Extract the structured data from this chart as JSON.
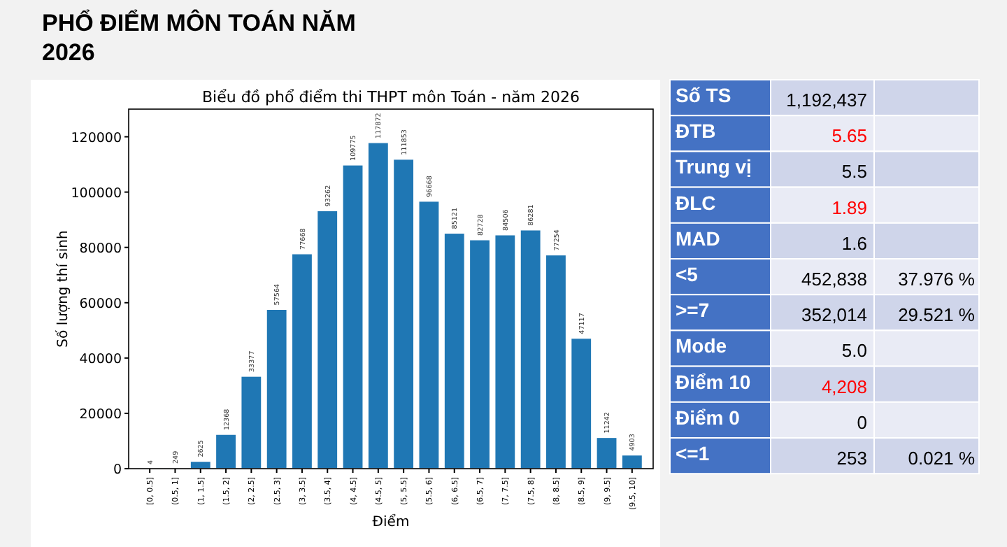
{
  "chart_data": [
    {
      "type": "bar",
      "title": "PHỔ ĐIỂM MÔN TOÁN NĂM 2026",
      "subtitle": "Biểu đồ phổ điểm thi THPT môn Toán - năm 2026",
      "xlabel": "Điểm",
      "ylabel": "Số lượng thí sinh",
      "categories": [
        "[0, 0.5]",
        "(0.5, 1]",
        "(1, 1.5]",
        "(1.5, 2]",
        "(2, 2.5]",
        "(2.5, 3]",
        "(3, 3.5]",
        "(3.5, 4]",
        "(4, 4.5]",
        "(4.5, 5]",
        "(5, 5.5]",
        "(5.5, 6]",
        "(6, 6.5]",
        "(6.5, 7]",
        "(7, 7.5]",
        "(7.5, 8]",
        "(8, 8.5]",
        "(8.5, 9]",
        "(9, 9.5]",
        "(9.5, 10]"
      ],
      "values": [
        4,
        249,
        2625,
        12368,
        33377,
        57564,
        77668,
        93262,
        109775,
        117872,
        111853,
        96668,
        85121,
        82728,
        84506,
        86281,
        77254,
        47117,
        11242,
        4903
      ],
      "color": "#1f77b4",
      "data_labels": true,
      "ylim": [
        0,
        130000
      ],
      "yticks": [
        0,
        20000,
        40000,
        60000,
        80000,
        100000,
        120000
      ],
      "grid": false
    },
    {
      "type": "other",
      "y_categories": [
        "Số TS",
        "ĐTB",
        "Trung vị",
        "ĐLC",
        "MAD",
        "<5",
        ">=7",
        "Mode",
        "Điểm 10",
        "Điểm 0",
        "<=1"
      ],
      "cell_labels": [
        [
          "1,192,437",
          null
        ],
        [
          "5.65",
          null
        ],
        [
          "5.5",
          null
        ],
        [
          "1.89",
          null
        ],
        [
          "1.6",
          null
        ],
        [
          "452,838",
          "37.976 %"
        ],
        [
          "352,014",
          "29.521 %"
        ],
        [
          "5.0",
          null
        ],
        [
          "4,208",
          null
        ],
        [
          "0",
          null
        ],
        [
          "253",
          "0.021 %"
        ]
      ],
      "colors": [
        "#000000",
        "#ff0000",
        "#000000",
        "#ff0000",
        "#000000",
        "#000000",
        "#000000",
        "#000000",
        "#ff0000",
        "#000000",
        "#000000"
      ]
    }
  ]
}
